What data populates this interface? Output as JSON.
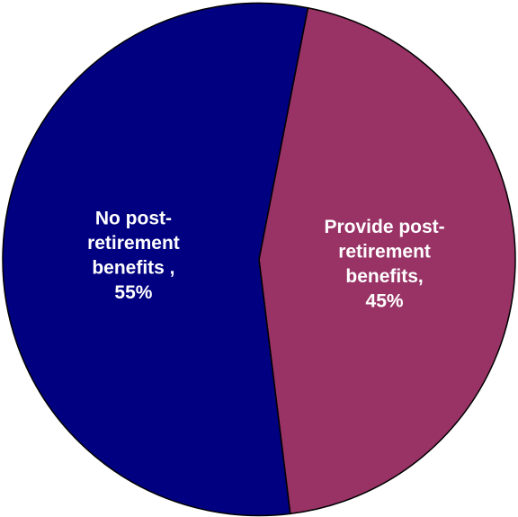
{
  "chart_data": {
    "type": "pie",
    "title": "",
    "legend": "none",
    "slices": [
      {
        "label": "Provide post-retirement benefits",
        "value": 45,
        "color": "#993366",
        "label_color": "#ffffff",
        "label_lines": [
          "Provide post-",
          "retirement",
          "benefits,",
          "45%"
        ]
      },
      {
        "label": "No post-retirement benefits",
        "value": 55,
        "color": "#000080",
        "label_color": "#ffffff",
        "label_lines": [
          "No post-",
          "retirement",
          "benefits ,",
          "55%"
        ]
      }
    ]
  }
}
